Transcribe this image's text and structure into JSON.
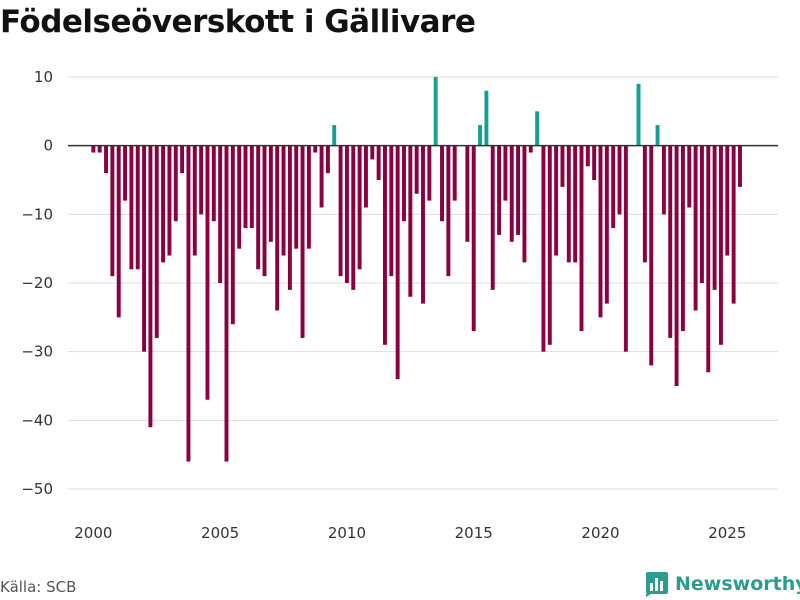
{
  "chart_data": {
    "type": "bar",
    "title": "Födelseöverskott i Gällivare",
    "xlabel": "",
    "ylabel": "",
    "ylim": [
      -50,
      10
    ],
    "xlim": [
      1999.0,
      2027.0
    ],
    "yticks": [
      10,
      0,
      -10,
      -20,
      -30,
      -40,
      -50
    ],
    "ytick_labels": [
      "10",
      "0",
      "−10",
      "−20",
      "−30",
      "−40",
      "−50"
    ],
    "xticks": [
      2000,
      2005,
      2010,
      2015,
      2020,
      2025
    ],
    "xtick_labels": [
      "2000",
      "2005",
      "2010",
      "2015",
      "2020",
      "2025"
    ],
    "grid": true,
    "start": 2000.0,
    "step": 0.25,
    "values": [
      -1,
      -1,
      -4,
      -19,
      -25,
      -8,
      -18,
      -18,
      -30,
      -41,
      -28,
      -17,
      -16,
      -11,
      -4,
      -46,
      -16,
      -10,
      -37,
      -11,
      -20,
      -46,
      -26,
      -15,
      -12,
      -12,
      -18,
      -19,
      -14,
      -24,
      -16,
      -21,
      -15,
      -28,
      -15,
      -1,
      -9,
      -4,
      3,
      -19,
      -20,
      -21,
      -18,
      -9,
      -2,
      -5,
      -29,
      -19,
      -34,
      -11,
      -22,
      -7,
      -23,
      -8,
      10,
      -11,
      -19,
      -8,
      0,
      -14,
      -27,
      3,
      8,
      -21,
      -13,
      -8,
      -14,
      -13,
      -17,
      -1,
      5,
      -30,
      -29,
      -16,
      -6,
      -17,
      -17,
      -27,
      -3,
      -5,
      -25,
      -23,
      -12,
      -10,
      -30,
      0,
      9,
      -17,
      -32,
      3,
      -10,
      -28,
      -35,
      -27,
      -9,
      -24,
      -20,
      -33,
      -21,
      -29,
      -16,
      -23,
      -6
    ],
    "colors": {
      "positive": "#16a095",
      "negative": "#8b0040"
    }
  },
  "footer": {
    "source": "Källa: SCB",
    "brand": "Newsworthy"
  }
}
